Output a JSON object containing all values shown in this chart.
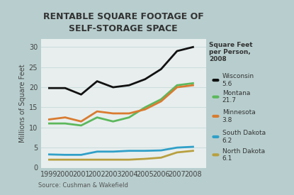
{
  "title": "RENTABLE SQUARE FOOTAGE OF\nSELF-STORAGE SPACE",
  "xlabel": "",
  "ylabel": "Millions of Square Feet",
  "source": "Source: Cushman & Wakefield",
  "years": [
    1999,
    2000,
    2001,
    2002,
    2003,
    2004,
    2005,
    2006,
    2007,
    2008
  ],
  "series": {
    "Wisconsin": {
      "color": "#111111",
      "sqft_per_person": "5.6",
      "values": [
        19.8,
        19.8,
        18.2,
        21.5,
        20.0,
        20.5,
        22.0,
        24.5,
        29.0,
        30.0
      ]
    },
    "Montana": {
      "color": "#5cb85c",
      "sqft_per_person": "21.7",
      "values": [
        11.0,
        11.0,
        10.5,
        12.5,
        11.5,
        12.5,
        15.0,
        17.0,
        20.5,
        21.0
      ]
    },
    "Minnesota": {
      "color": "#d97b30",
      "sqft_per_person": "3.8",
      "values": [
        12.0,
        12.5,
        11.5,
        14.0,
        13.5,
        13.5,
        14.5,
        16.5,
        20.0,
        20.5
      ]
    },
    "South Dakota": {
      "color": "#30a0c8",
      "sqft_per_person": "6.2",
      "values": [
        3.3,
        3.2,
        3.2,
        4.0,
        4.0,
        4.2,
        4.2,
        4.3,
        5.0,
        5.2
      ]
    },
    "North Dakota": {
      "color": "#b8a040",
      "sqft_per_person": "6.1",
      "values": [
        2.0,
        2.0,
        2.0,
        2.0,
        2.0,
        2.0,
        2.2,
        2.5,
        3.8,
        4.2
      ]
    }
  },
  "ylim": [
    0,
    32
  ],
  "yticks": [
    0,
    5,
    10,
    15,
    20,
    25,
    30
  ],
  "background_color": "#b8cece",
  "plot_bg_color": "#e8eeee",
  "grid_color": "#ccdddd",
  "legend_header": "Square Feet\nper Person,\n2008",
  "title_fontsize": 9,
  "axis_label_fontsize": 7,
  "tick_fontsize": 7,
  "legend_fontsize": 6.5
}
